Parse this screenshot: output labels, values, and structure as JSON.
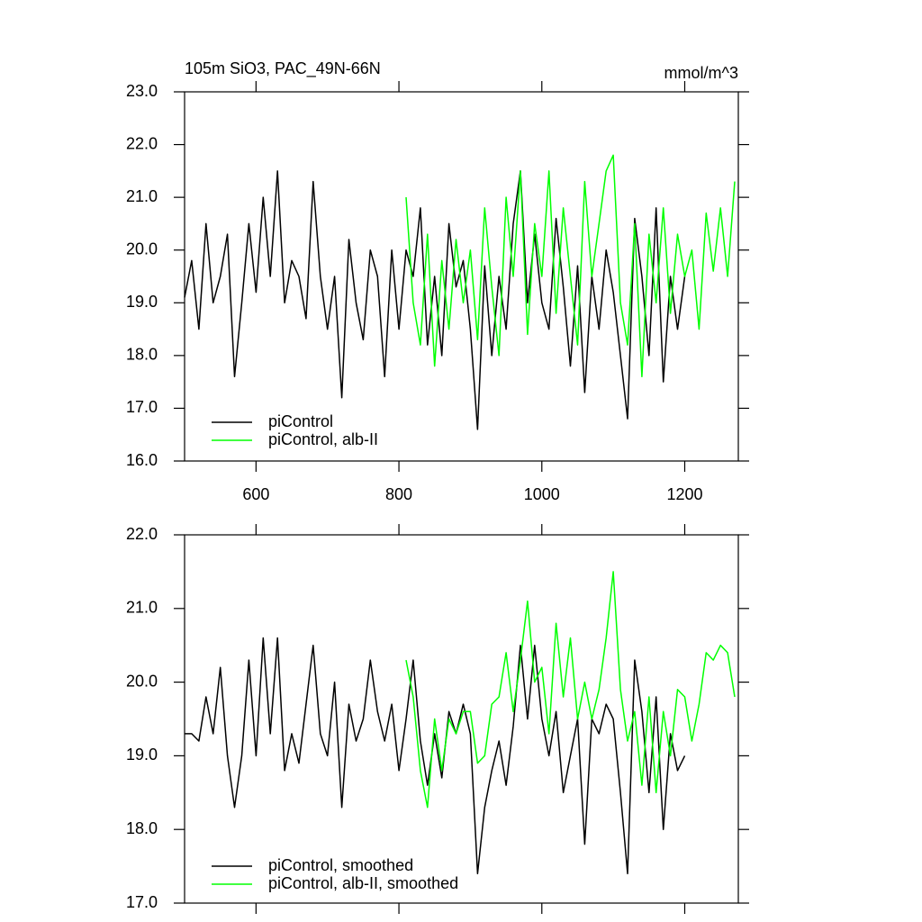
{
  "chart_data": [
    {
      "type": "line",
      "title": "105m SiO3, PAC_49N-66N",
      "units": "mmol/m^3",
      "x": [
        500,
        510,
        520,
        530,
        540,
        550,
        560,
        570,
        580,
        590,
        600,
        610,
        620,
        630,
        640,
        650,
        660,
        670,
        680,
        690,
        700,
        710,
        720,
        730,
        740,
        750,
        760,
        770,
        780,
        790,
        800,
        810,
        820,
        830,
        840,
        850,
        860,
        870,
        880,
        890,
        900,
        910,
        920,
        930,
        940,
        950,
        960,
        970,
        980,
        990,
        1000,
        1010,
        1020,
        1030,
        1040,
        1050,
        1060,
        1070,
        1080,
        1090,
        1100,
        1110,
        1120,
        1130,
        1140,
        1150,
        1160,
        1170,
        1180,
        1190,
        1200,
        1210,
        1220,
        1230,
        1240,
        1250,
        1260,
        1270
      ],
      "xlim": [
        500,
        1275
      ],
      "xticks": [
        600,
        800,
        1000,
        1200
      ],
      "show_xtick_labels": true,
      "ylim": [
        16,
        23
      ],
      "yticks": [
        {
          "value": 16,
          "label": "16.0"
        },
        {
          "value": 17,
          "label": "17.0"
        },
        {
          "value": 18,
          "label": "18.0"
        },
        {
          "value": 19,
          "label": "19.0"
        },
        {
          "value": 20,
          "label": "20.0"
        },
        {
          "value": 21,
          "label": "21.0"
        },
        {
          "value": 22,
          "label": "22.0"
        },
        {
          "value": 23,
          "label": "23.0"
        }
      ],
      "series": [
        {
          "name": "piControl",
          "color": "#000000",
          "values": [
            19.1,
            19.8,
            18.5,
            20.5,
            19.0,
            19.5,
            20.3,
            17.6,
            19.0,
            20.5,
            19.2,
            21.0,
            19.5,
            21.5,
            19.0,
            19.8,
            19.5,
            18.7,
            21.3,
            19.5,
            18.5,
            19.5,
            17.2,
            20.2,
            19.0,
            18.3,
            20.0,
            19.5,
            17.6,
            20.0,
            18.5,
            20.0,
            19.5,
            20.8,
            18.2,
            19.5,
            18.0,
            20.5,
            19.3,
            19.8,
            18.5,
            16.6,
            19.7,
            18.0,
            19.5,
            18.5,
            20.5,
            21.5,
            19.0,
            20.3,
            19.0,
            18.5,
            20.6,
            19.3,
            17.8,
            19.7,
            17.3,
            19.5,
            18.5,
            20.0,
            19.2,
            18.0,
            16.8,
            20.6,
            19.5,
            18.0,
            20.8,
            17.5,
            19.5,
            18.5,
            19.5,
            null,
            null,
            null,
            null,
            null,
            null,
            null
          ]
        },
        {
          "name": "piControl, alb-II",
          "color": "#00ff00",
          "values": [
            null,
            null,
            null,
            null,
            null,
            null,
            null,
            null,
            null,
            null,
            null,
            null,
            null,
            null,
            null,
            null,
            null,
            null,
            null,
            null,
            null,
            null,
            null,
            null,
            null,
            null,
            null,
            null,
            null,
            null,
            null,
            21.0,
            19.0,
            18.2,
            20.3,
            17.8,
            19.8,
            18.5,
            20.2,
            19.0,
            20.0,
            18.3,
            20.8,
            19.3,
            18.0,
            21.0,
            19.5,
            21.5,
            18.4,
            20.5,
            19.5,
            21.5,
            18.8,
            20.8,
            19.5,
            18.2,
            21.3,
            19.5,
            20.5,
            21.5,
            21.8,
            19.0,
            18.2,
            20.5,
            17.6,
            20.3,
            19.0,
            20.8,
            18.8,
            20.3,
            19.5,
            20.0,
            18.5,
            20.7,
            19.6,
            20.8,
            19.5,
            21.3
          ]
        }
      ]
    },
    {
      "type": "line",
      "x": [
        500,
        510,
        520,
        530,
        540,
        550,
        560,
        570,
        580,
        590,
        600,
        610,
        620,
        630,
        640,
        650,
        660,
        670,
        680,
        690,
        700,
        710,
        720,
        730,
        740,
        750,
        760,
        770,
        780,
        790,
        800,
        810,
        820,
        830,
        840,
        850,
        860,
        870,
        880,
        890,
        900,
        910,
        920,
        930,
        940,
        950,
        960,
        970,
        980,
        990,
        1000,
        1010,
        1020,
        1030,
        1040,
        1050,
        1060,
        1070,
        1080,
        1090,
        1100,
        1110,
        1120,
        1130,
        1140,
        1150,
        1160,
        1170,
        1180,
        1190,
        1200,
        1210,
        1220,
        1230,
        1240,
        1250,
        1260,
        1270
      ],
      "xlim": [
        500,
        1275
      ],
      "xticks": [
        600,
        800,
        1000,
        1200
      ],
      "show_xtick_labels": false,
      "ylim": [
        17,
        22
      ],
      "yticks": [
        {
          "value": 17,
          "label": "17.0"
        },
        {
          "value": 18,
          "label": "18.0"
        },
        {
          "value": 19,
          "label": "19.0"
        },
        {
          "value": 20,
          "label": "20.0"
        },
        {
          "value": 21,
          "label": "21.0"
        },
        {
          "value": 22,
          "label": "22.0"
        }
      ],
      "series": [
        {
          "name": "piControl, smoothed",
          "color": "#000000",
          "values": [
            19.3,
            19.3,
            19.2,
            19.8,
            19.3,
            20.2,
            19.0,
            18.3,
            19.0,
            20.3,
            19.0,
            20.6,
            19.3,
            20.6,
            18.8,
            19.3,
            18.9,
            19.7,
            20.5,
            19.3,
            19.0,
            20.0,
            18.3,
            19.7,
            19.2,
            19.5,
            20.3,
            19.6,
            19.2,
            19.7,
            18.8,
            19.5,
            20.3,
            19.2,
            18.6,
            19.3,
            18.7,
            19.6,
            19.3,
            19.7,
            19.3,
            17.4,
            18.3,
            18.8,
            19.2,
            18.6,
            19.4,
            20.5,
            19.5,
            20.5,
            19.5,
            19.0,
            19.6,
            18.5,
            19.0,
            19.5,
            17.8,
            19.5,
            19.3,
            19.7,
            19.5,
            18.5,
            17.4,
            20.3,
            19.6,
            18.5,
            19.8,
            18.0,
            19.3,
            18.8,
            19.0,
            null,
            null,
            null,
            null,
            null,
            null,
            null
          ]
        },
        {
          "name": "piControl, alb-II, smoothed",
          "color": "#00ff00",
          "values": [
            null,
            null,
            null,
            null,
            null,
            null,
            null,
            null,
            null,
            null,
            null,
            null,
            null,
            null,
            null,
            null,
            null,
            null,
            null,
            null,
            null,
            null,
            null,
            null,
            null,
            null,
            null,
            null,
            null,
            null,
            null,
            20.3,
            19.8,
            18.8,
            18.3,
            19.5,
            18.8,
            19.5,
            19.3,
            19.6,
            19.6,
            18.9,
            19.0,
            19.7,
            19.8,
            20.4,
            19.6,
            20.3,
            21.1,
            20.0,
            20.2,
            19.3,
            20.8,
            19.8,
            20.6,
            19.5,
            20.0,
            19.5,
            19.9,
            20.6,
            21.5,
            19.9,
            19.2,
            19.6,
            18.6,
            19.8,
            18.5,
            19.6,
            19.0,
            19.9,
            19.8,
            19.2,
            19.7,
            20.4,
            20.3,
            20.5,
            20.4,
            19.8
          ]
        }
      ]
    }
  ]
}
